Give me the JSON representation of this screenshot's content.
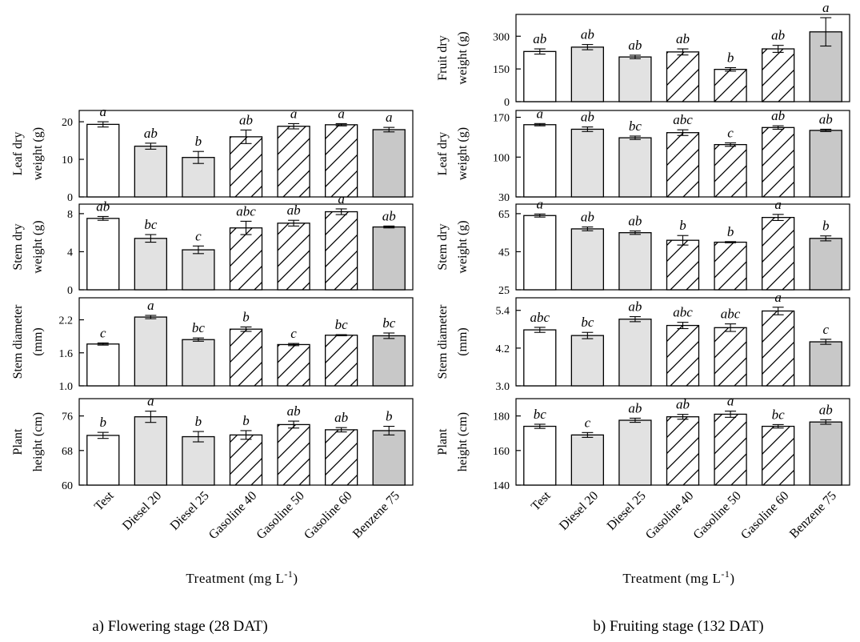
{
  "categories": [
    "Test",
    "Diesel 20",
    "Diesel 25",
    "Gasoline 40",
    "Gasoline 50",
    "Gasoline 60",
    "Benzene 75"
  ],
  "bar_styles": [
    "white",
    "gray",
    "gray",
    "hatch",
    "hatch",
    "hatch",
    "darkgray"
  ],
  "colors": {
    "white": "#ffffff",
    "gray": "#e2e2e2",
    "darkgray": "#c8c8c8",
    "hatch": "#ffffff",
    "stroke": "#000000"
  },
  "x_title": {
    "base": "Treatment (mg L",
    "sup": "-1",
    "close": ")"
  },
  "chart_data": [
    {
      "type": "bar",
      "panel": "a",
      "row": 1,
      "ylabel": [
        "Leaf dry",
        "weight (g)"
      ],
      "ylim": [
        0,
        23
      ],
      "yticks": [
        "0",
        "10",
        "20"
      ],
      "values": [
        19.3,
        13.5,
        10.5,
        16.0,
        18.8,
        19.2,
        17.9
      ],
      "errors": [
        0.7,
        0.8,
        1.6,
        1.8,
        0.7,
        0.3,
        0.6
      ],
      "letters": [
        "a",
        "ab",
        "b",
        "ab",
        "a",
        "a",
        "a"
      ]
    },
    {
      "type": "bar",
      "panel": "a",
      "row": 2,
      "ylabel": [
        "Stem dry",
        "weight (g)"
      ],
      "ylim": [
        0,
        9
      ],
      "yticks": [
        "0",
        "4",
        "8"
      ],
      "values": [
        7.5,
        5.4,
        4.2,
        6.5,
        7.0,
        8.2,
        6.6
      ],
      "errors": [
        0.2,
        0.4,
        0.4,
        0.7,
        0.3,
        0.3,
        0.1
      ],
      "letters": [
        "ab",
        "bc",
        "c",
        "abc",
        "ab",
        "a",
        "ab"
      ]
    },
    {
      "type": "bar",
      "panel": "a",
      "row": 3,
      "ylabel": [
        "Stem diameter",
        "(mm)"
      ],
      "ylim": [
        1.0,
        2.6
      ],
      "yticks": [
        "1.0",
        "1.6",
        "2.2"
      ],
      "values": [
        1.76,
        2.25,
        1.84,
        2.03,
        1.75,
        1.92,
        1.91
      ],
      "errors": [
        0.02,
        0.03,
        0.03,
        0.04,
        0.02,
        0.01,
        0.05
      ],
      "letters": [
        "c",
        "a",
        "bc",
        "b",
        "c",
        "bc",
        "bc"
      ]
    },
    {
      "type": "bar",
      "panel": "a",
      "row": 4,
      "ylabel": [
        "Plant",
        "height (cm)"
      ],
      "ylim": [
        60,
        80
      ],
      "yticks": [
        "60",
        "68",
        "76"
      ],
      "values": [
        71.5,
        75.8,
        71.2,
        71.6,
        74.0,
        72.8,
        72.6
      ],
      "errors": [
        0.7,
        1.3,
        1.2,
        1.0,
        0.8,
        0.5,
        1.0
      ],
      "letters": [
        "b",
        "a",
        "b",
        "b",
        "ab",
        "ab",
        "b"
      ]
    },
    {
      "type": "bar",
      "panel": "b",
      "row": 0,
      "ylabel": [
        "Fruit dry",
        "weight (g)"
      ],
      "ylim": [
        0,
        400
      ],
      "yticks": [
        "0",
        "150",
        "300"
      ],
      "values": [
        230,
        250,
        205,
        228,
        148,
        242,
        320
      ],
      "errors": [
        12,
        12,
        8,
        14,
        8,
        16,
        65
      ],
      "letters": [
        "ab",
        "ab",
        "ab",
        "ab",
        "b",
        "ab",
        "a"
      ]
    },
    {
      "type": "bar",
      "panel": "b",
      "row": 1,
      "ylabel": [
        "Leaf dry",
        "weight (g)"
      ],
      "ylim": [
        30,
        182
      ],
      "yticks": [
        "30",
        "100",
        "170"
      ],
      "values": [
        157,
        149,
        134,
        143,
        122,
        152,
        147
      ],
      "errors": [
        2,
        4,
        3,
        5,
        3,
        3,
        2
      ],
      "letters": [
        "a",
        "ab",
        "bc",
        "abc",
        "c",
        "ab",
        "ab"
      ]
    },
    {
      "type": "bar",
      "panel": "b",
      "row": 2,
      "ylabel": [
        "Stem dry",
        "weight (g)"
      ],
      "ylim": [
        25,
        70
      ],
      "yticks": [
        "25",
        "45",
        "65"
      ],
      "values": [
        64,
        57,
        55,
        51,
        50,
        63,
        52
      ],
      "errors": [
        0.8,
        1.0,
        0.9,
        2.5,
        0.3,
        1.6,
        1.3
      ],
      "letters": [
        "a",
        "ab",
        "ab",
        "b",
        "b",
        "a",
        "b"
      ]
    },
    {
      "type": "bar",
      "panel": "b",
      "row": 3,
      "ylabel": [
        "Stem diameter",
        "(mm)"
      ],
      "ylim": [
        3.0,
        5.8
      ],
      "yticks": [
        "3.0",
        "4.2",
        "5.4"
      ],
      "values": [
        4.78,
        4.6,
        5.12,
        4.92,
        4.85,
        5.38,
        4.4
      ],
      "errors": [
        0.08,
        0.1,
        0.08,
        0.1,
        0.12,
        0.12,
        0.08
      ],
      "letters": [
        "abc",
        "bc",
        "ab",
        "abc",
        "abc",
        "a",
        "c"
      ]
    },
    {
      "type": "bar",
      "panel": "b",
      "row": 4,
      "ylabel": [
        "Plant",
        "height (cm)"
      ],
      "ylim": [
        140,
        190
      ],
      "yticks": [
        "140",
        "160",
        "180"
      ],
      "values": [
        174,
        169,
        177.5,
        179.5,
        181,
        174,
        176.5
      ],
      "errors": [
        1.2,
        1.4,
        1.2,
        1.4,
        1.8,
        1.0,
        1.3
      ],
      "letters": [
        "bc",
        "c",
        "ab",
        "ab",
        "a",
        "bc",
        "ab"
      ]
    }
  ],
  "captions": {
    "a": "a) Flowering stage (28 DAT)",
    "b": "b) Fruiting stage (132 DAT)"
  }
}
